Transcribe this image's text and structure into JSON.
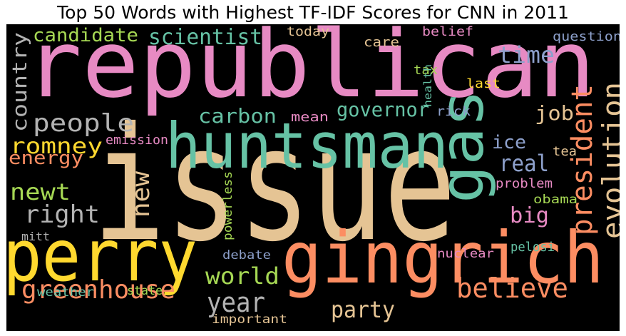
{
  "chart_data": {
    "type": "wordcloud",
    "title": "Top 50 Words with Highest TF-IDF Scores for CNN in 2011",
    "background": "#000000",
    "palette": [
      "#66c2a5",
      "#fc8d62",
      "#8da0cb",
      "#e78ac3",
      "#a6d854",
      "#ffd92f",
      "#e5c494",
      "#b3b3b3"
    ],
    "words": [
      {
        "text": "issue",
        "color": "#e5c494"
      },
      {
        "text": "republican",
        "color": "#e78ac3"
      },
      {
        "text": "huntsman",
        "color": "#66c2a5"
      },
      {
        "text": "gingrich",
        "color": "#fc8d62"
      },
      {
        "text": "perry",
        "color": "#ffd92f"
      },
      {
        "text": "gas",
        "color": "#66c2a5"
      },
      {
        "text": "president",
        "color": "#fc8d62"
      },
      {
        "text": "evolution",
        "color": "#e5c494"
      },
      {
        "text": "believe",
        "color": "#fc8d62"
      },
      {
        "text": "greenhouse",
        "color": "#fc8d62"
      },
      {
        "text": "people",
        "color": "#b3b3b3"
      },
      {
        "text": "scientist",
        "color": "#66c2a5"
      },
      {
        "text": "candidate",
        "color": "#a6d854"
      },
      {
        "text": "country",
        "color": "#b3b3b3"
      },
      {
        "text": "right",
        "color": "#b3b3b3"
      },
      {
        "text": "romney",
        "color": "#ffd92f"
      },
      {
        "text": "carbon",
        "color": "#66c2a5"
      },
      {
        "text": "governor",
        "color": "#66c2a5"
      },
      {
        "text": "world",
        "color": "#a6d854"
      },
      {
        "text": "year",
        "color": "#b3b3b3"
      },
      {
        "text": "party",
        "color": "#e5c494"
      },
      {
        "text": "newt",
        "color": "#a6d854"
      },
      {
        "text": "new",
        "color": "#e5c494"
      },
      {
        "text": "time",
        "color": "#8da0cb"
      },
      {
        "text": "real",
        "color": "#8da0cb"
      },
      {
        "text": "job",
        "color": "#e5c494"
      },
      {
        "text": "big",
        "color": "#e78ac3"
      },
      {
        "text": "energy",
        "color": "#fc8d62"
      },
      {
        "text": "ice",
        "color": "#8da0cb"
      },
      {
        "text": "question",
        "color": "#8da0cb"
      },
      {
        "text": "belief",
        "color": "#e78ac3"
      },
      {
        "text": "today",
        "color": "#e5c494"
      },
      {
        "text": "care",
        "color": "#e5c494"
      },
      {
        "text": "tax",
        "color": "#a6d854"
      },
      {
        "text": "last",
        "color": "#ffd92f"
      },
      {
        "text": "health",
        "color": "#66c2a5"
      },
      {
        "text": "emission",
        "color": "#e78ac3"
      },
      {
        "text": "mean",
        "color": "#e78ac3"
      },
      {
        "text": "rick",
        "color": "#8da0cb"
      },
      {
        "text": "tea",
        "color": "#e5c494"
      },
      {
        "text": "problem",
        "color": "#e78ac3"
      },
      {
        "text": "obama",
        "color": "#a6d854"
      },
      {
        "text": "powerless",
        "color": "#a6d854"
      },
      {
        "text": "mitt",
        "color": "#b3b3b3"
      },
      {
        "text": "debate",
        "color": "#8da0cb"
      },
      {
        "text": "pelosi",
        "color": "#66c2a5"
      },
      {
        "text": "nuclear",
        "color": "#e78ac3"
      },
      {
        "text": "weather",
        "color": "#66c2a5"
      },
      {
        "text": "state",
        "color": "#a6d854"
      },
      {
        "text": "important",
        "color": "#e5c494"
      }
    ]
  }
}
